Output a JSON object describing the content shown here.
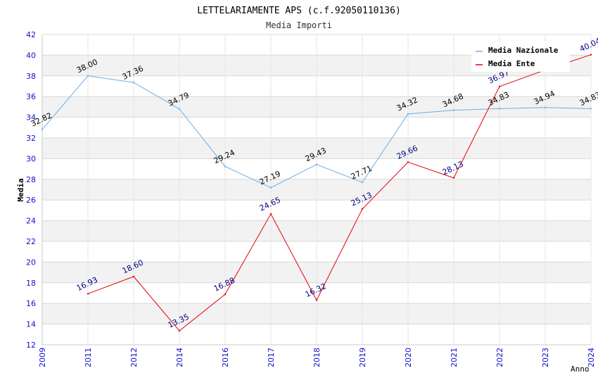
{
  "colors": {
    "nazionale": "#6aaee8",
    "ente": "#e8000a",
    "axis_text": "#1010cc",
    "band": "#f2f2f2",
    "grid": "#d8d8d8",
    "label_nazionale": "#000000",
    "label_ente": "#000080"
  },
  "chart_data": {
    "type": "line",
    "title": "LETTELARIAMENTE APS (c.f.92050110136)",
    "subtitle": "Media Importi",
    "xlabel": "Anno",
    "ylabel": "Media",
    "ylim": [
      12,
      42
    ],
    "yticks": [
      12,
      14,
      16,
      18,
      20,
      22,
      24,
      26,
      28,
      30,
      32,
      34,
      36,
      38,
      40,
      42
    ],
    "categories": [
      "2009",
      "2011",
      "2012",
      "2014",
      "2016",
      "2017",
      "2018",
      "2019",
      "2020",
      "2021",
      "2022",
      "2023",
      "2024"
    ],
    "grid": true,
    "legend_position": "top-right",
    "series": [
      {
        "name": "Media Nazionale",
        "color_key": "nazionale",
        "values": [
          32.82,
          38.0,
          37.36,
          34.79,
          29.24,
          27.19,
          29.43,
          27.71,
          34.32,
          34.68,
          34.83,
          34.94,
          34.83
        ],
        "labels": [
          "32.82",
          "38.00",
          "37.36",
          "34.79",
          "29.24",
          "27.19",
          "29.43",
          "27.71",
          "34.32",
          "34.68",
          "34.83",
          "34.94",
          "34.83"
        ]
      },
      {
        "name": "Media Ente",
        "color_key": "ente",
        "values": [
          null,
          16.93,
          18.6,
          13.35,
          16.88,
          24.65,
          16.32,
          25.13,
          29.66,
          28.13,
          36.97,
          38.57,
          40.04
        ],
        "labels": [
          null,
          "16.93",
          "18.60",
          "13.35",
          "16.88",
          "24.65",
          "16.32",
          "25.13",
          "29.66",
          "28.13",
          "36.97",
          null,
          "40.04"
        ]
      }
    ]
  }
}
